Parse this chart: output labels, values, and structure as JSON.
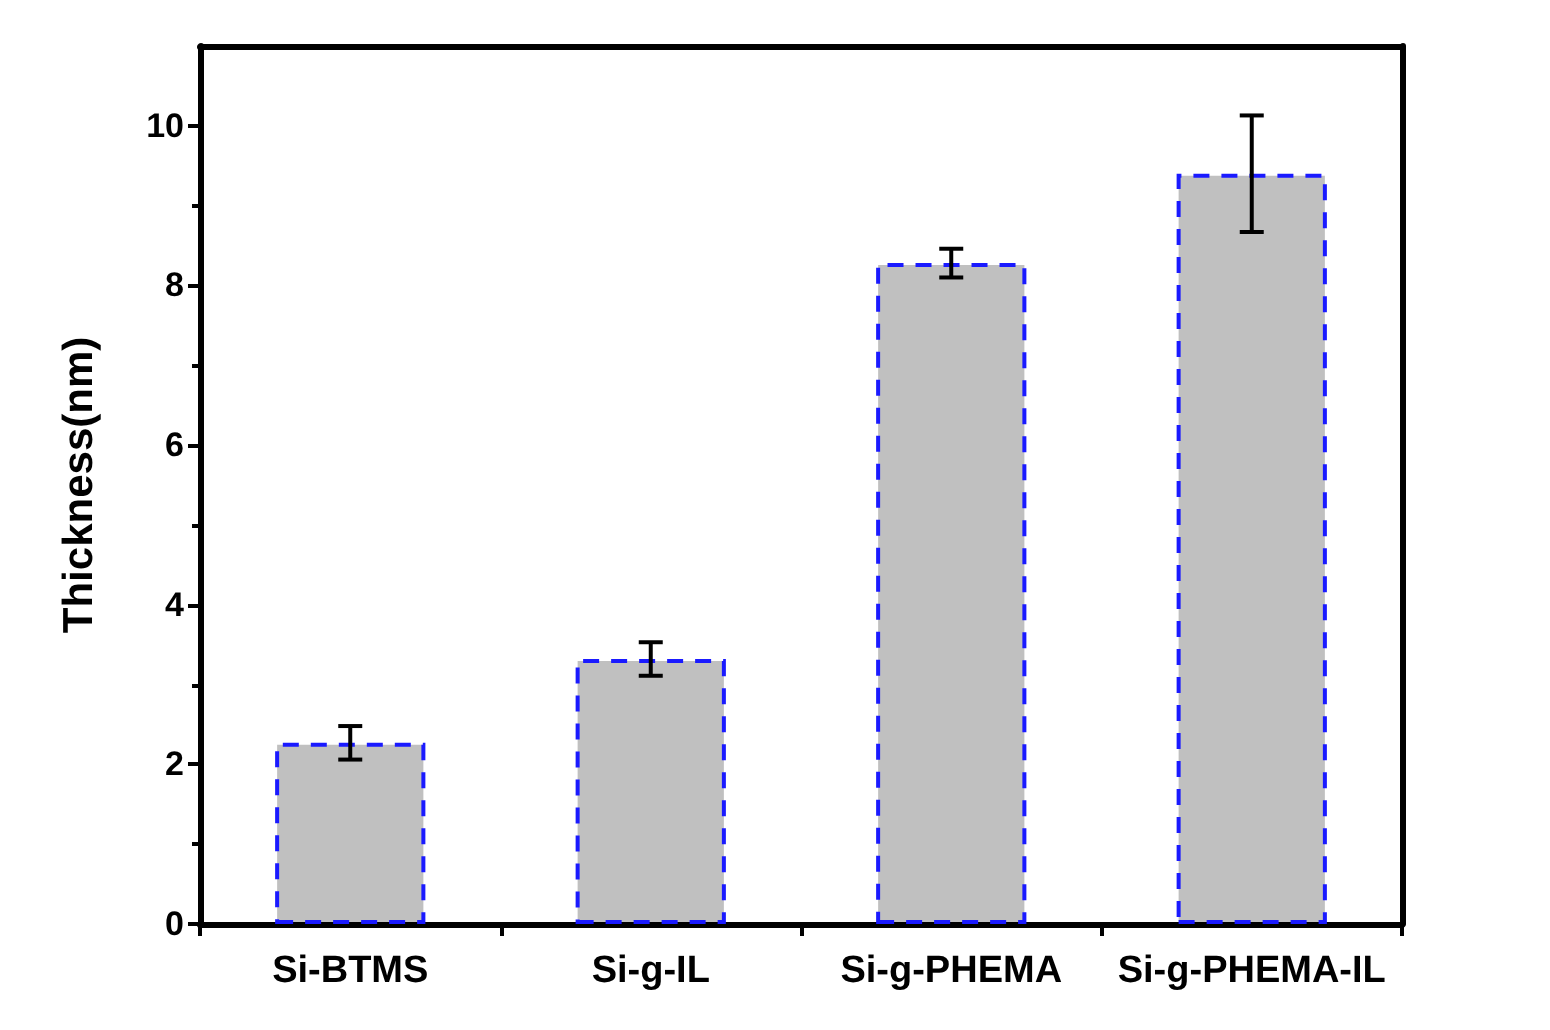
{
  "chart_data": {
    "type": "bar",
    "ylabel": "Thickness(nm)",
    "categories": [
      "Si-BTMS",
      "Si-g-IL",
      "Si-g-PHEMA",
      "Si-g-PHEMA-IL"
    ],
    "values": [
      2.27,
      3.32,
      8.28,
      9.4
    ],
    "errors": [
      0.21,
      0.21,
      0.18,
      0.73
    ],
    "color": "#c0c0c0",
    "ylim": [
      0,
      11
    ],
    "yticks": [
      0,
      2,
      4,
      6,
      8,
      10
    ],
    "grid": false
  }
}
